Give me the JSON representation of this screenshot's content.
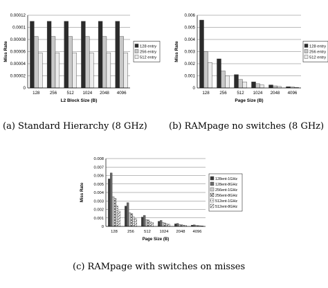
{
  "captions": {
    "a": "(a) Standard Hierarchy (8 GHz)",
    "b": "(b) RAMpage no switches (8 GHz)",
    "c": "(c) RAMpage with switches on misses"
  },
  "chart_data": [
    {
      "id": "a",
      "type": "bar",
      "title": "",
      "xlabel": "L2 Block Size (B)",
      "ylabel": "Miss Rate",
      "categories": [
        "128",
        "256",
        "512",
        "1024",
        "2048",
        "4096"
      ],
      "ylim": [
        0,
        0.00012
      ],
      "yticks": [
        "0",
        "0.00002",
        "0.00004",
        "0.00006",
        "0.00008",
        "0.0001",
        "0.00012"
      ],
      "grid": true,
      "legend_position": "right",
      "series": [
        {
          "name": "128 entry",
          "color": "#2b2b2b",
          "pattern": "solid",
          "values": [
            0.00011,
            0.00011,
            0.00011,
            0.00011,
            0.00011,
            0.00011
          ]
        },
        {
          "name": "256 entry",
          "color": "#c8c8c8",
          "pattern": "solid",
          "values": [
            8.5e-05,
            8.5e-05,
            8.5e-05,
            8.5e-05,
            8.5e-05,
            8.5e-05
          ]
        },
        {
          "name": "512 entry",
          "color": "#ececec",
          "pattern": "solid",
          "values": [
            5.8e-05,
            5.8e-05,
            5.8e-05,
            5.8e-05,
            5.8e-05,
            5.8e-05
          ]
        }
      ]
    },
    {
      "id": "b",
      "type": "bar",
      "title": "",
      "xlabel": "Page Size (B)",
      "ylabel": "Miss Rate",
      "categories": [
        "128",
        "256",
        "512",
        "1024",
        "2048",
        "4096"
      ],
      "ylim": [
        0,
        0.006
      ],
      "yticks": [
        "0",
        "0.001",
        "0.002",
        "0.003",
        "0.004",
        "0.005",
        "0.006"
      ],
      "grid": true,
      "legend_position": "right",
      "series": [
        {
          "name": "128 entry",
          "color": "#2b2b2b",
          "pattern": "solid",
          "values": [
            0.0056,
            0.0024,
            0.0011,
            0.0005,
            0.00025,
            0.0001
          ]
        },
        {
          "name": "256 entry",
          "color": "#c8c8c8",
          "pattern": "solid",
          "values": [
            0.003,
            0.0014,
            0.0007,
            0.00035,
            0.00017,
            8e-05
          ]
        },
        {
          "name": "512 entry",
          "color": "#ececec",
          "pattern": "solid",
          "values": [
            0.0021,
            0.001,
            0.0005,
            0.00025,
            0.00012,
            5e-05
          ]
        }
      ]
    },
    {
      "id": "c",
      "type": "bar",
      "title": "",
      "xlabel": "Page Size (B)",
      "ylabel": "Miss Rate",
      "categories": [
        "128",
        "256",
        "512",
        "1024",
        "2048",
        "4096"
      ],
      "ylim": [
        0,
        0.008
      ],
      "yticks": [
        "0",
        "0.001",
        "0.002",
        "0.003",
        "0.004",
        "0.005",
        "0.006",
        "0.007",
        "0.008"
      ],
      "grid": true,
      "legend_position": "right",
      "series": [
        {
          "name": "128ent-1GHz",
          "color": "#3a3a3a",
          "pattern": "solid",
          "values": [
            0.0056,
            0.0024,
            0.0011,
            0.0006,
            0.0003,
            0.00015
          ]
        },
        {
          "name": "128ent-8GHz",
          "color": "#6a6a6a",
          "pattern": "solid",
          "values": [
            0.0063,
            0.0028,
            0.0013,
            0.0007,
            0.00035,
            0.00018
          ]
        },
        {
          "name": "256ent-1GHz",
          "color": "#cfcfcf",
          "pattern": "solid",
          "values": [
            0.0035,
            0.0016,
            0.0008,
            0.00045,
            0.00022,
            0.00012
          ]
        },
        {
          "name": "256ent-8GHz",
          "color": "#ffffff",
          "pattern": "cross",
          "values": [
            0.0033,
            0.0015,
            0.00075,
            0.0004,
            0.0002,
            0.0001
          ]
        },
        {
          "name": "512ent-1GHz",
          "color": "#ffffff",
          "pattern": "dots",
          "values": [
            0.0024,
            0.0011,
            0.00055,
            0.0003,
            0.00015,
            8e-05
          ]
        },
        {
          "name": "512ent-8GHz",
          "color": "#ffffff",
          "pattern": "hatch",
          "values": [
            0.0018,
            0.0009,
            0.00045,
            0.00025,
            0.00012,
            6e-05
          ]
        }
      ]
    }
  ]
}
